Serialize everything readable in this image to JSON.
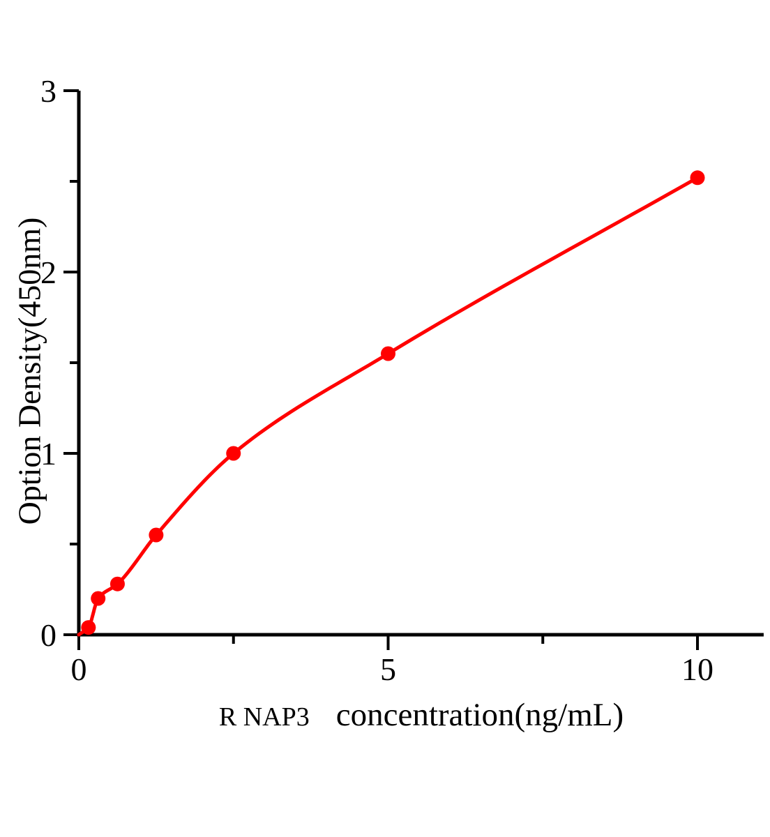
{
  "chart_data": {
    "type": "scatter",
    "title": "",
    "xlabel": "R NAP3  concentration(ng/mL)",
    "xlabel_prefix": "R NAP3",
    "xlabel_main": "concentration(ng/mL)",
    "ylabel": "Option Density(450nm)",
    "x": [
      0.156,
      0.3125,
      0.625,
      1.25,
      2.5,
      5,
      10
    ],
    "y": [
      0.04,
      0.2,
      0.28,
      0.55,
      1.0,
      1.55,
      2.52
    ],
    "curve_start": [
      0,
      0
    ],
    "xlim": [
      0,
      11.07
    ],
    "ylim": [
      0,
      3
    ],
    "x_major_ticks": [
      0,
      5,
      10
    ],
    "x_major_tick_labels": [
      "0",
      "5",
      "10"
    ],
    "x_minor_ticks": [
      2.5,
      7.5
    ],
    "y_major_ticks": [
      0,
      1,
      2,
      3
    ],
    "y_major_tick_labels": [
      "0",
      "1",
      "2",
      "3"
    ],
    "y_minor_ticks": [
      0.5,
      1.5,
      2.5
    ],
    "grid": "off",
    "legend": "none",
    "line_color": "#ff0000",
    "point_color": "#ff0000",
    "axis_color": "#000000"
  }
}
